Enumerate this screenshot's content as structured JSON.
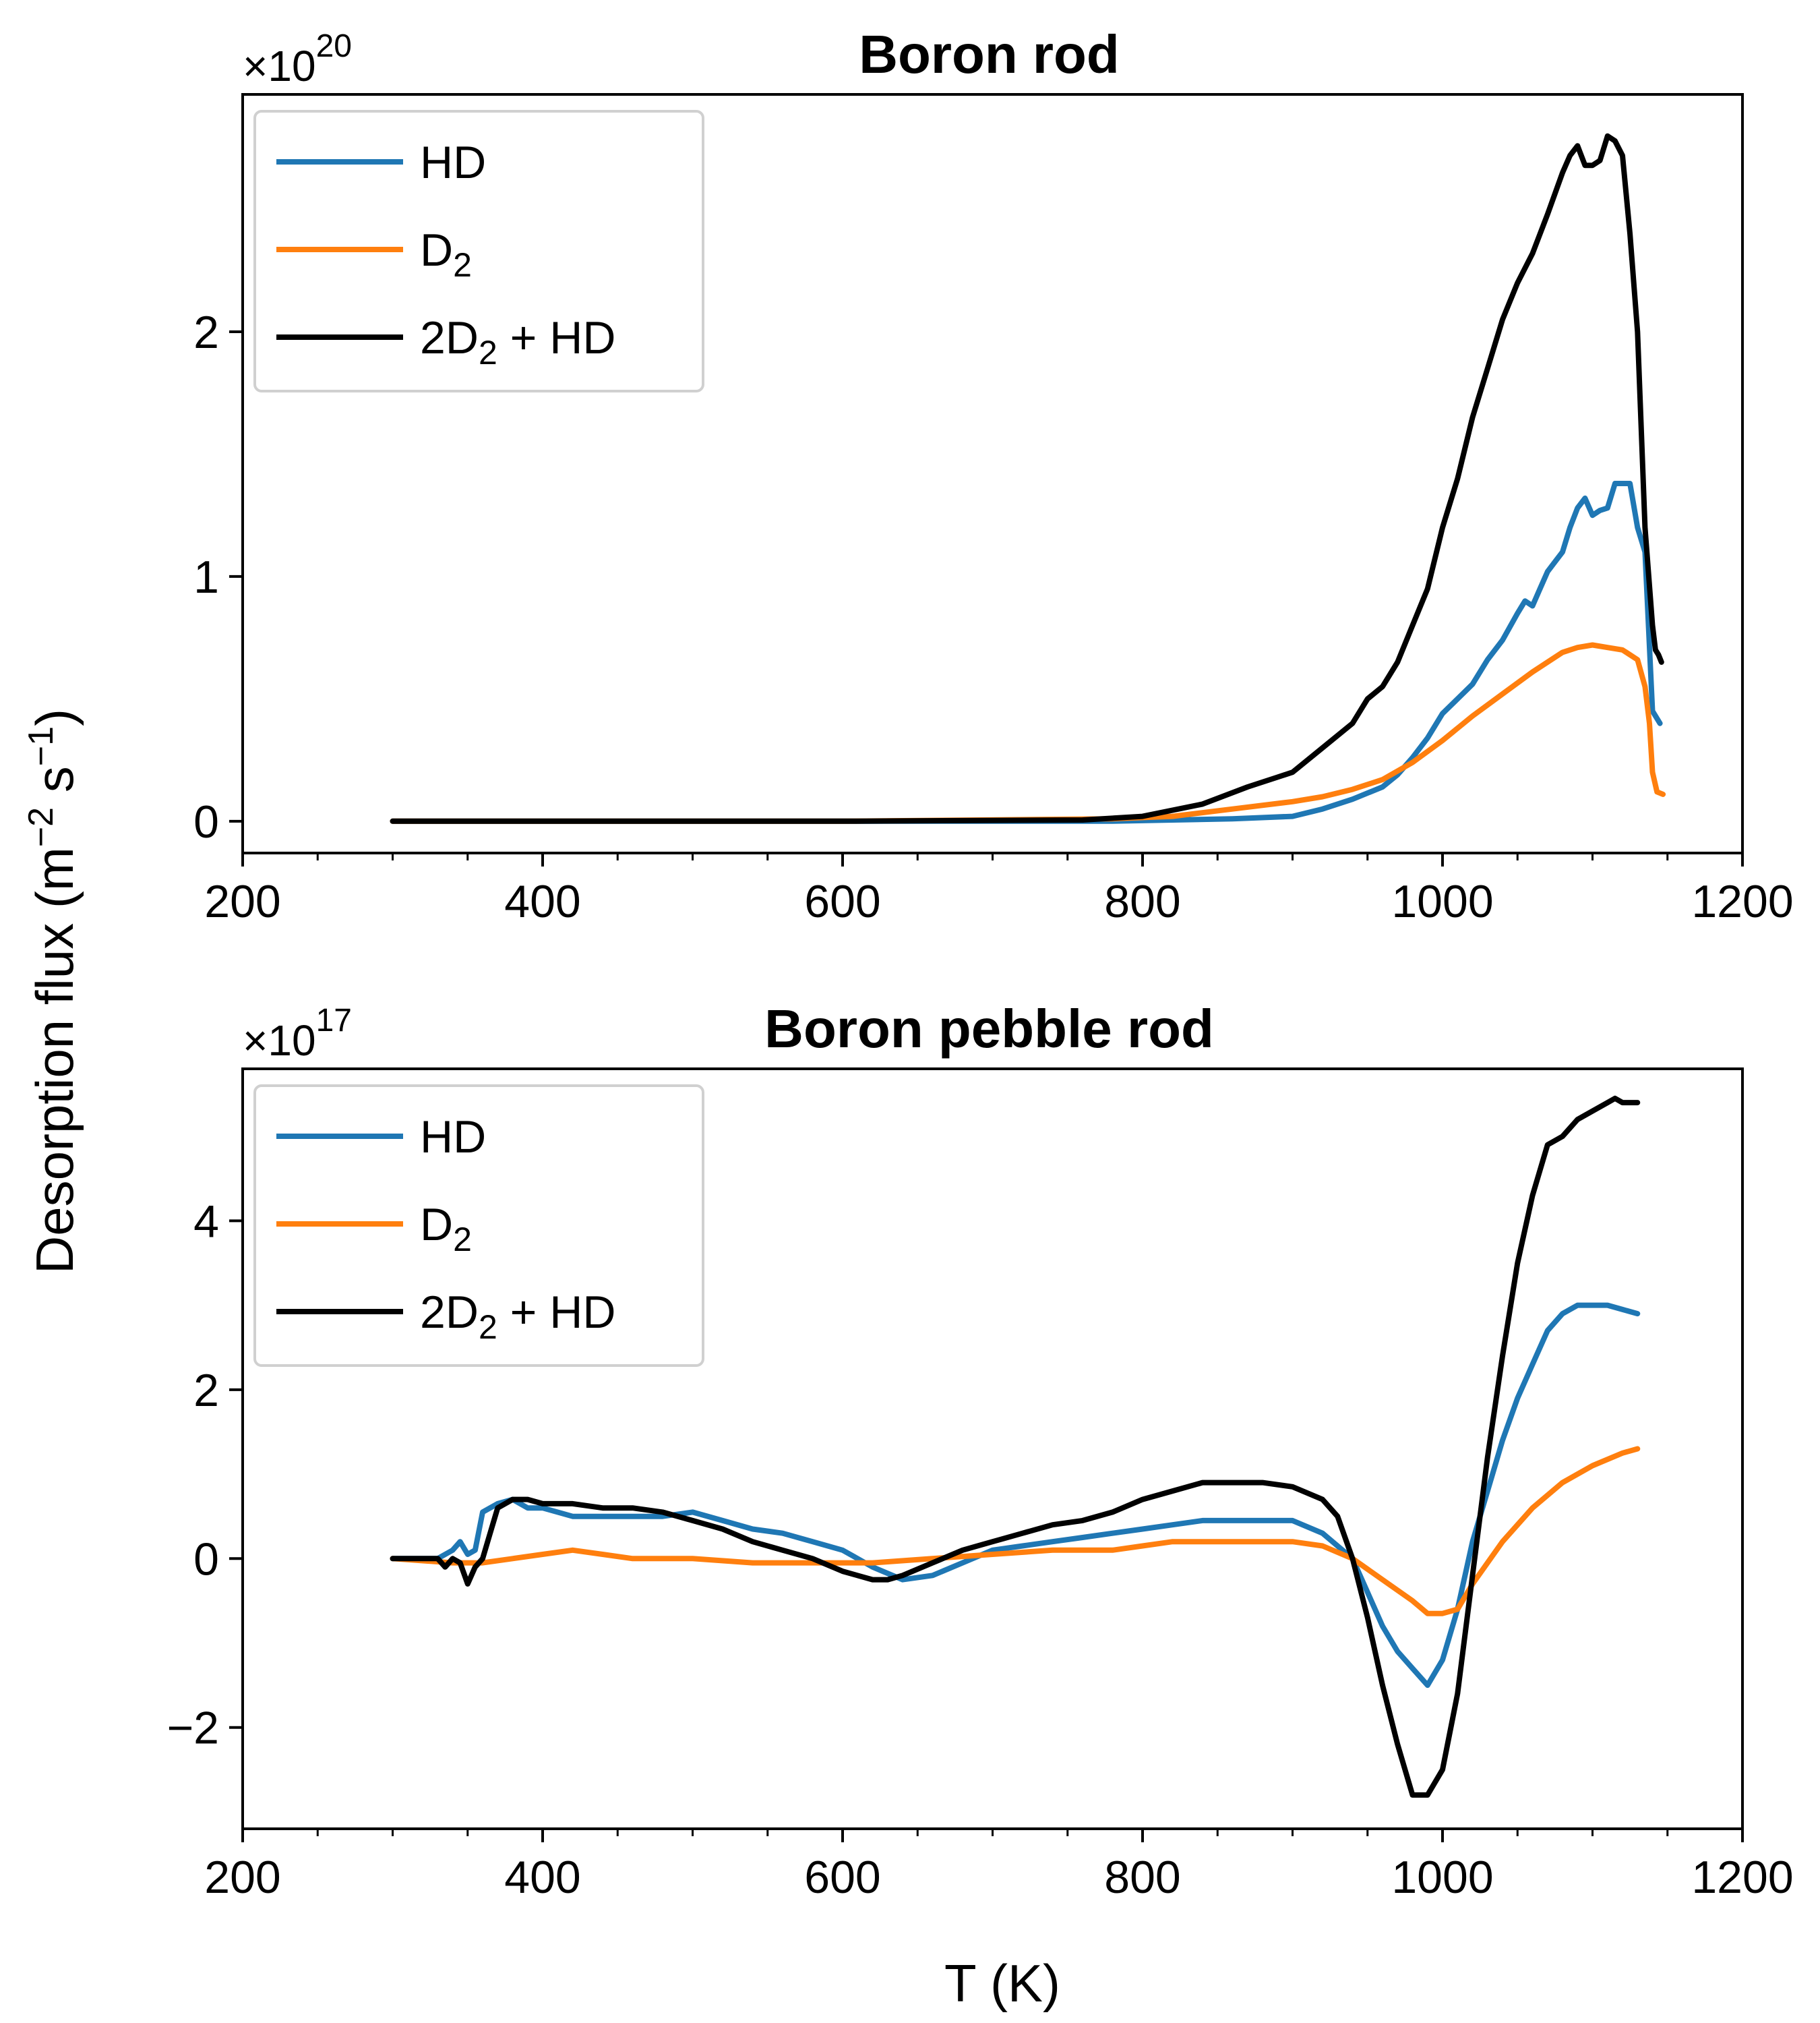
{
  "figure": {
    "ylabel_main": "Desorption flux (m",
    "ylabel_exp1": "−2",
    "ylabel_mid": " s",
    "ylabel_exp2": "−1",
    "ylabel_end": ")",
    "xlabel": "T (K)"
  },
  "chart_data": [
    {
      "type": "line",
      "title": "Boron rod",
      "xlabel": "T (K)",
      "ylabel": "Desorption flux (m−2 s−1)",
      "multiplier": {
        "base": "×10",
        "exp": "20"
      },
      "xlim": [
        200,
        1200
      ],
      "ylim": [
        -0.13,
        2.97
      ],
      "xticks": [
        200,
        400,
        600,
        800,
        1000,
        1200
      ],
      "xtick_labels": [
        "200",
        "400",
        "600",
        "800",
        "1000",
        "1200"
      ],
      "xminor": 50,
      "yticks": [
        0,
        1,
        2
      ],
      "ytick_labels": [
        "0",
        "1",
        "2"
      ],
      "legend": "upper-left",
      "grid": false,
      "series": [
        {
          "name": "HD",
          "sub": "",
          "suffix": "",
          "color": "#1f77b4",
          "x": [
            300,
            600,
            780,
            820,
            860,
            900,
            920,
            940,
            960,
            970,
            980,
            990,
            1000,
            1010,
            1020,
            1030,
            1040,
            1050,
            1055,
            1060,
            1065,
            1070,
            1075,
            1080,
            1085,
            1090,
            1095,
            1100,
            1105,
            1110,
            1115,
            1120,
            1125,
            1130,
            1135,
            1140,
            1145
          ],
          "y": [
            0,
            0,
            0,
            0.005,
            0.01,
            0.02,
            0.05,
            0.09,
            0.14,
            0.19,
            0.26,
            0.34,
            0.44,
            0.5,
            0.56,
            0.66,
            0.74,
            0.85,
            0.9,
            0.88,
            0.95,
            1.02,
            1.06,
            1.1,
            1.2,
            1.28,
            1.32,
            1.25,
            1.27,
            1.28,
            1.38,
            1.38,
            1.38,
            1.2,
            1.1,
            0.45,
            0.4
          ]
        },
        {
          "name": "D",
          "sub": "2",
          "suffix": "",
          "color": "#ff7f0e",
          "x": [
            300,
            600,
            780,
            820,
            860,
            900,
            920,
            940,
            960,
            980,
            1000,
            1020,
            1040,
            1060,
            1080,
            1090,
            1100,
            1110,
            1120,
            1125,
            1130,
            1135,
            1138,
            1140,
            1143,
            1147
          ],
          "y": [
            0,
            0,
            0.01,
            0.02,
            0.05,
            0.08,
            0.1,
            0.13,
            0.17,
            0.24,
            0.33,
            0.43,
            0.52,
            0.61,
            0.69,
            0.71,
            0.72,
            0.71,
            0.7,
            0.68,
            0.66,
            0.55,
            0.4,
            0.2,
            0.12,
            0.11
          ]
        },
        {
          "name": "2D",
          "sub": "2",
          "suffix": " + HD",
          "color": "#000000",
          "x": [
            300,
            600,
            760,
            800,
            840,
            870,
            890,
            900,
            920,
            940,
            950,
            960,
            970,
            980,
            990,
            1000,
            1010,
            1020,
            1030,
            1040,
            1050,
            1060,
            1070,
            1080,
            1085,
            1090,
            1095,
            1100,
            1105,
            1110,
            1115,
            1120,
            1125,
            1130,
            1135,
            1140,
            1142,
            1144,
            1146
          ],
          "y": [
            0,
            0,
            0.005,
            0.02,
            0.07,
            0.14,
            0.18,
            0.2,
            0.3,
            0.4,
            0.5,
            0.55,
            0.65,
            0.8,
            0.95,
            1.2,
            1.4,
            1.65,
            1.85,
            2.05,
            2.2,
            2.32,
            2.48,
            2.65,
            2.72,
            2.76,
            2.68,
            2.68,
            2.7,
            2.8,
            2.78,
            2.72,
            2.4,
            2.0,
            1.2,
            0.8,
            0.7,
            0.68,
            0.65
          ]
        }
      ]
    },
    {
      "type": "line",
      "title": "Boron pebble rod",
      "xlabel": "T (K)",
      "ylabel": "Desorption flux (m−2 s−1)",
      "multiplier": {
        "base": "×10",
        "exp": "17"
      },
      "xlim": [
        200,
        1200
      ],
      "ylim": [
        -3.2,
        5.8
      ],
      "xticks": [
        200,
        400,
        600,
        800,
        1000,
        1200
      ],
      "xtick_labels": [
        "200",
        "400",
        "600",
        "800",
        "1000",
        "1200"
      ],
      "xminor": 50,
      "yticks": [
        -2,
        0,
        2,
        4
      ],
      "ytick_labels": [
        "−2",
        "0",
        "2",
        "4"
      ],
      "legend": "upper-left",
      "grid": false,
      "series": [
        {
          "name": "HD",
          "sub": "",
          "suffix": "",
          "color": "#1f77b4",
          "x": [
            300,
            330,
            340,
            345,
            350,
            355,
            360,
            370,
            380,
            390,
            400,
            420,
            440,
            460,
            480,
            500,
            520,
            540,
            560,
            580,
            600,
            620,
            640,
            660,
            680,
            700,
            720,
            740,
            760,
            780,
            800,
            820,
            840,
            860,
            880,
            900,
            920,
            940,
            950,
            960,
            970,
            980,
            990,
            1000,
            1010,
            1020,
            1030,
            1040,
            1050,
            1060,
            1070,
            1080,
            1090,
            1100,
            1110,
            1120,
            1130
          ],
          "y": [
            0,
            0,
            0.1,
            0.2,
            0.05,
            0.1,
            0.55,
            0.65,
            0.7,
            0.6,
            0.6,
            0.5,
            0.5,
            0.5,
            0.5,
            0.55,
            0.45,
            0.35,
            0.3,
            0.2,
            0.1,
            -0.1,
            -0.25,
            -0.2,
            -0.05,
            0.1,
            0.15,
            0.2,
            0.25,
            0.3,
            0.35,
            0.4,
            0.45,
            0.45,
            0.45,
            0.45,
            0.3,
            0.0,
            -0.4,
            -0.8,
            -1.1,
            -1.3,
            -1.5,
            -1.2,
            -0.6,
            0.2,
            0.8,
            1.4,
            1.9,
            2.3,
            2.7,
            2.9,
            3.0,
            3.0,
            3.0,
            2.95,
            2.9
          ]
        },
        {
          "name": "D",
          "sub": "2",
          "suffix": "",
          "color": "#ff7f0e",
          "x": [
            300,
            340,
            360,
            380,
            400,
            420,
            440,
            460,
            480,
            500,
            540,
            580,
            620,
            660,
            700,
            740,
            780,
            800,
            820,
            840,
            860,
            880,
            900,
            920,
            940,
            960,
            980,
            990,
            1000,
            1010,
            1020,
            1040,
            1060,
            1080,
            1100,
            1120,
            1130
          ],
          "y": [
            0,
            -0.05,
            -0.05,
            0.0,
            0.05,
            0.1,
            0.05,
            0.0,
            0.0,
            0.0,
            -0.05,
            -0.05,
            -0.05,
            0.0,
            0.05,
            0.1,
            0.1,
            0.15,
            0.2,
            0.2,
            0.2,
            0.2,
            0.2,
            0.15,
            0.0,
            -0.25,
            -0.5,
            -0.65,
            -0.65,
            -0.6,
            -0.3,
            0.2,
            0.6,
            0.9,
            1.1,
            1.25,
            1.3
          ]
        },
        {
          "name": "2D",
          "sub": "2",
          "suffix": " + HD",
          "color": "#000000",
          "x": [
            300,
            330,
            335,
            340,
            345,
            350,
            355,
            360,
            365,
            370,
            380,
            390,
            400,
            420,
            440,
            460,
            480,
            500,
            520,
            540,
            560,
            580,
            600,
            620,
            630,
            640,
            660,
            680,
            700,
            720,
            740,
            760,
            780,
            800,
            820,
            840,
            860,
            880,
            900,
            920,
            930,
            940,
            950,
            960,
            970,
            980,
            990,
            1000,
            1010,
            1020,
            1030,
            1040,
            1050,
            1060,
            1070,
            1080,
            1090,
            1100,
            1110,
            1115,
            1120,
            1130
          ],
          "y": [
            0,
            0,
            -0.1,
            0,
            -0.05,
            -0.3,
            -0.1,
            0,
            0.3,
            0.6,
            0.7,
            0.7,
            0.65,
            0.65,
            0.6,
            0.6,
            0.55,
            0.45,
            0.35,
            0.2,
            0.1,
            0.0,
            -0.15,
            -0.25,
            -0.25,
            -0.2,
            -0.05,
            0.1,
            0.2,
            0.3,
            0.4,
            0.45,
            0.55,
            0.7,
            0.8,
            0.9,
            0.9,
            0.9,
            0.85,
            0.7,
            0.5,
            0.0,
            -0.7,
            -1.5,
            -2.2,
            -2.8,
            -2.8,
            -2.5,
            -1.6,
            -0.2,
            1.2,
            2.4,
            3.5,
            4.3,
            4.9,
            5.0,
            5.2,
            5.3,
            5.4,
            5.45,
            5.4,
            5.4
          ]
        }
      ]
    }
  ]
}
